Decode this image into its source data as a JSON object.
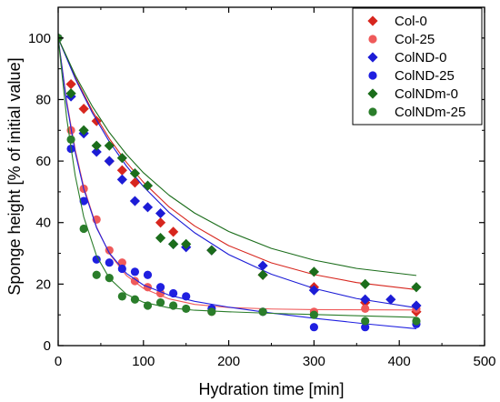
{
  "chart_data": {
    "type": "scatter",
    "xlabel": "Hydration time [min]",
    "ylabel": "Sponge height [% of initial value]",
    "xlim": [
      0,
      500
    ],
    "ylim": [
      0,
      110
    ],
    "xticks": [
      "0",
      "100",
      "200",
      "300",
      "400",
      "500"
    ],
    "yticks": [
      "0",
      "20",
      "40",
      "60",
      "80",
      "100"
    ],
    "grid": false,
    "legend_position": "top-right",
    "fit_curves": true,
    "series": [
      {
        "name": "Col-0",
        "color": "#d7261e",
        "marker": "diamond",
        "points": [
          [
            0,
            100
          ],
          [
            15,
            85
          ],
          [
            30,
            77
          ],
          [
            45,
            73
          ],
          [
            60,
            60
          ],
          [
            75,
            57
          ],
          [
            90,
            53
          ],
          [
            120,
            40
          ],
          [
            135,
            37
          ],
          [
            180,
            31
          ],
          [
            240,
            23
          ],
          [
            300,
            19
          ],
          [
            360,
            14
          ],
          [
            420,
            11
          ]
        ],
        "fit": [
          [
            0,
            100
          ],
          [
            20,
            87.2
          ],
          [
            40,
            76.4
          ],
          [
            60,
            67.3
          ],
          [
            80,
            59.6
          ],
          [
            100,
            53.1
          ],
          [
            130,
            45.1
          ],
          [
            160,
            38.9
          ],
          [
            200,
            32.5
          ],
          [
            250,
            26.9
          ],
          [
            300,
            23.1
          ],
          [
            350,
            20.5
          ],
          [
            420,
            18.2
          ]
        ]
      },
      {
        "name": "Col-25",
        "color": "#ef5a5a",
        "marker": "circle",
        "points": [
          [
            0,
            100
          ],
          [
            15,
            70
          ],
          [
            30,
            51
          ],
          [
            45,
            41
          ],
          [
            60,
            31
          ],
          [
            75,
            27
          ],
          [
            90,
            21
          ],
          [
            105,
            19
          ],
          [
            120,
            17
          ],
          [
            180,
            11
          ],
          [
            240,
            11
          ],
          [
            300,
            11
          ],
          [
            360,
            12
          ],
          [
            420,
            12
          ]
        ],
        "fit": [
          [
            0,
            100
          ],
          [
            10,
            79.5
          ],
          [
            20,
            63.7
          ],
          [
            30,
            51.6
          ],
          [
            45,
            38.6
          ],
          [
            60,
            29.9
          ],
          [
            80,
            22.8
          ],
          [
            100,
            18.6
          ],
          [
            130,
            15.2
          ],
          [
            160,
            13.4
          ],
          [
            200,
            12.4
          ],
          [
            250,
            11.9
          ],
          [
            300,
            11.7
          ],
          [
            420,
            11.6
          ]
        ]
      },
      {
        "name": "ColND-0",
        "color": "#1c1cd6",
        "marker": "diamond",
        "points": [
          [
            0,
            100
          ],
          [
            15,
            81
          ],
          [
            30,
            69
          ],
          [
            45,
            63
          ],
          [
            60,
            60
          ],
          [
            75,
            54
          ],
          [
            90,
            47
          ],
          [
            105,
            45
          ],
          [
            120,
            43
          ],
          [
            135,
            33
          ],
          [
            150,
            32
          ],
          [
            180,
            31
          ],
          [
            240,
            26
          ],
          [
            300,
            18
          ],
          [
            360,
            15
          ],
          [
            390,
            15
          ],
          [
            420,
            13
          ]
        ],
        "fit": [
          [
            0,
            100
          ],
          [
            20,
            86.8
          ],
          [
            40,
            75.7
          ],
          [
            60,
            66.3
          ],
          [
            80,
            58.4
          ],
          [
            100,
            51.7
          ],
          [
            130,
            43.3
          ],
          [
            160,
            36.7
          ],
          [
            200,
            29.6
          ],
          [
            250,
            23.2
          ],
          [
            300,
            18.6
          ],
          [
            350,
            15.3
          ],
          [
            420,
            12.3
          ]
        ]
      },
      {
        "name": "ColND-25",
        "color": "#1f1fe0",
        "marker": "circle",
        "points": [
          [
            0,
            100
          ],
          [
            15,
            64
          ],
          [
            30,
            47
          ],
          [
            45,
            28
          ],
          [
            60,
            27
          ],
          [
            75,
            25
          ],
          [
            90,
            24
          ],
          [
            105,
            23
          ],
          [
            120,
            19
          ],
          [
            135,
            17
          ],
          [
            150,
            16
          ],
          [
            180,
            12
          ],
          [
            240,
            11
          ],
          [
            300,
            6
          ],
          [
            360,
            6
          ],
          [
            420,
            7
          ]
        ],
        "fit": [
          [
            0,
            100
          ],
          [
            10,
            78.7
          ],
          [
            20,
            62.8
          ],
          [
            30,
            50.9
          ],
          [
            45,
            38.3
          ],
          [
            60,
            30.1
          ],
          [
            80,
            23.5
          ],
          [
            100,
            19.7
          ],
          [
            130,
            16.4
          ],
          [
            160,
            14.4
          ],
          [
            200,
            12.5
          ],
          [
            250,
            10.6
          ],
          [
            300,
            8.9
          ],
          [
            360,
            7.1
          ],
          [
            420,
            5.5
          ]
        ]
      },
      {
        "name": "ColNDm-0",
        "color": "#1b6d1b",
        "marker": "diamond",
        "points": [
          [
            0,
            100
          ],
          [
            15,
            82
          ],
          [
            30,
            70
          ],
          [
            45,
            65
          ],
          [
            60,
            65
          ],
          [
            75,
            61
          ],
          [
            90,
            56
          ],
          [
            105,
            52
          ],
          [
            120,
            35
          ],
          [
            135,
            33
          ],
          [
            150,
            33
          ],
          [
            180,
            31
          ],
          [
            240,
            23
          ],
          [
            300,
            24
          ],
          [
            360,
            20
          ],
          [
            420,
            19
          ]
        ],
        "fit": [
          [
            0,
            100
          ],
          [
            20,
            87.9
          ],
          [
            40,
            77.8
          ],
          [
            60,
            69.3
          ],
          [
            80,
            62.2
          ],
          [
            100,
            56.2
          ],
          [
            130,
            48.9
          ],
          [
            160,
            43.1
          ],
          [
            200,
            37.1
          ],
          [
            250,
            31.6
          ],
          [
            300,
            27.8
          ],
          [
            350,
            25.1
          ],
          [
            420,
            22.8
          ]
        ]
      },
      {
        "name": "ColNDm-25",
        "color": "#2a7d2a",
        "marker": "circle",
        "points": [
          [
            0,
            100
          ],
          [
            15,
            67
          ],
          [
            30,
            38
          ],
          [
            45,
            23
          ],
          [
            60,
            22
          ],
          [
            75,
            16
          ],
          [
            90,
            15
          ],
          [
            105,
            13
          ],
          [
            120,
            14
          ],
          [
            135,
            13
          ],
          [
            150,
            12
          ],
          [
            180,
            11
          ],
          [
            240,
            11
          ],
          [
            300,
            10
          ],
          [
            360,
            8
          ],
          [
            420,
            8
          ]
        ],
        "fit": [
          [
            0,
            100
          ],
          [
            10,
            73.9
          ],
          [
            20,
            55.2
          ],
          [
            30,
            41.8
          ],
          [
            45,
            29.2
          ],
          [
            60,
            21.9
          ],
          [
            80,
            16.7
          ],
          [
            100,
            14.1
          ],
          [
            130,
            12.3
          ],
          [
            160,
            11.5
          ],
          [
            200,
            11.0
          ],
          [
            250,
            10.5
          ],
          [
            300,
            10.1
          ],
          [
            420,
            9.2
          ]
        ]
      }
    ]
  }
}
